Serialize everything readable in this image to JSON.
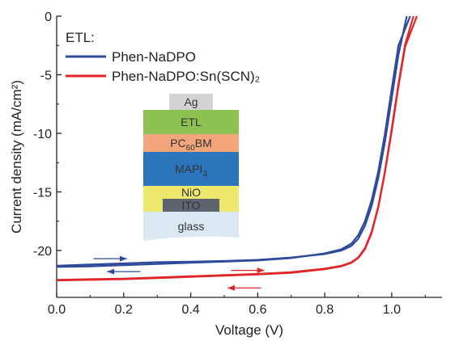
{
  "chart_data": {
    "type": "line",
    "xlabel": "Voltage (V)",
    "ylabel": "Current density (mA/cm²)",
    "xlim": [
      0.0,
      1.15
    ],
    "ylim": [
      -24,
      0
    ],
    "x_ticks": [
      "0.0",
      "0.2",
      "0.4",
      "0.6",
      "0.8",
      "1.0"
    ],
    "y_ticks": [
      "0",
      "-5",
      "-10",
      "-15",
      "-20"
    ],
    "legend_title": "ETL:",
    "legend_position": "top-left",
    "series": [
      {
        "name": "Phen-NaDPO",
        "color": "#2e4a9a",
        "scans": [
          {
            "x": [
              0.0,
              0.1,
              0.2,
              0.3,
              0.4,
              0.5,
              0.6,
              0.7,
              0.8,
              0.85,
              0.88,
              0.9,
              0.92,
              0.94,
              0.96,
              0.98,
              1.0,
              1.02,
              1.045
            ],
            "y": [
              -21.3,
              -21.2,
              -21.1,
              -21.0,
              -20.95,
              -20.9,
              -20.8,
              -20.6,
              -20.3,
              -20.0,
              -19.6,
              -19.0,
              -17.9,
              -16.2,
              -13.8,
              -10.7,
              -7.0,
              -3.3,
              0.0
            ]
          },
          {
            "x": [
              0.0,
              0.1,
              0.2,
              0.3,
              0.4,
              0.5,
              0.6,
              0.7,
              0.8,
              0.85,
              0.88,
              0.9,
              0.92,
              0.94,
              0.96,
              0.98,
              1.0,
              1.02,
              1.055
            ],
            "y": [
              -21.4,
              -21.35,
              -21.25,
              -21.15,
              -21.05,
              -20.95,
              -20.85,
              -20.65,
              -20.25,
              -19.9,
              -19.4,
              -18.7,
              -17.5,
              -15.7,
              -13.2,
              -10.0,
              -6.2,
              -2.5,
              0.0
            ]
          }
        ]
      },
      {
        "name": "Phen-NaDPO:Sn(SCN)₂",
        "color": "#e0262a",
        "scans": [
          {
            "x": [
              0.0,
              0.1,
              0.2,
              0.3,
              0.4,
              0.5,
              0.6,
              0.7,
              0.8,
              0.85,
              0.88,
              0.9,
              0.92,
              0.94,
              0.96,
              0.98,
              1.0,
              1.02,
              1.04,
              1.065
            ],
            "y": [
              -22.5,
              -22.45,
              -22.4,
              -22.3,
              -22.2,
              -22.1,
              -22.0,
              -21.85,
              -21.55,
              -21.3,
              -21.0,
              -20.6,
              -19.8,
              -18.4,
              -16.2,
              -13.2,
              -9.6,
              -5.8,
              -2.4,
              0.0
            ]
          },
          {
            "x": [
              0.0,
              0.1,
              0.2,
              0.3,
              0.4,
              0.5,
              0.6,
              0.7,
              0.8,
              0.85,
              0.88,
              0.9,
              0.92,
              0.94,
              0.96,
              0.98,
              1.0,
              1.02,
              1.04,
              1.075
            ],
            "y": [
              -22.55,
              -22.5,
              -22.45,
              -22.35,
              -22.25,
              -22.15,
              -22.05,
              -21.9,
              -21.6,
              -21.35,
              -21.05,
              -20.65,
              -19.9,
              -18.5,
              -16.3,
              -13.3,
              -9.8,
              -6.0,
              -2.6,
              0.0
            ]
          }
        ]
      }
    ],
    "arrows": [
      {
        "color": "#2e4a9a",
        "x": [
          0.11,
          0.21
        ],
        "y": [
          -20.7,
          -20.7
        ]
      },
      {
        "color": "#2e4a9a",
        "x": [
          0.25,
          0.15
        ],
        "y": [
          -21.8,
          -21.8
        ]
      },
      {
        "color": "#e0262a",
        "x": [
          0.52,
          0.62
        ],
        "y": [
          -21.7,
          -21.7
        ]
      },
      {
        "color": "#e0262a",
        "x": [
          0.61,
          0.51
        ],
        "y": [
          -23.2,
          -23.2
        ]
      }
    ]
  },
  "device_stack": {
    "layers": [
      {
        "label": "Ag",
        "sub": "",
        "tail": "",
        "color": "#d3d3d3"
      },
      {
        "label": "ETL",
        "sub": "",
        "tail": "",
        "color": "#8dc152"
      },
      {
        "label": "PC",
        "sub": "60",
        "tail": "BM",
        "color": "#f3a57c"
      },
      {
        "label": "MAPI",
        "sub": "3",
        "tail": "",
        "color": "#2a75bb"
      },
      {
        "label": "NiO",
        "sub": "",
        "tail": "",
        "color": "#ede76e"
      },
      {
        "label": "ITO",
        "sub": "",
        "tail": "",
        "color": "#5d6470"
      },
      {
        "label": "glass",
        "sub": "",
        "tail": "",
        "color": "#dce8f3"
      }
    ]
  }
}
